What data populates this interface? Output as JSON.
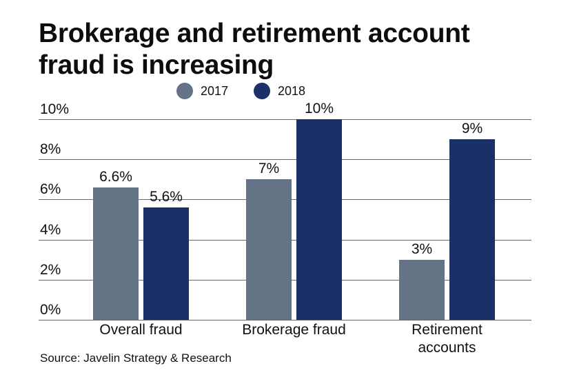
{
  "title": "Brokerage and retirement account fraud is increasing",
  "legend": [
    {
      "label": "2017",
      "color": "#647386"
    },
    {
      "label": "2018",
      "color": "#1b3066"
    }
  ],
  "yticks": [
    "0%",
    "2%",
    "4%",
    "6%",
    "8%",
    "10%"
  ],
  "categories": [
    "Overall fraud",
    "Brokerage fraud",
    "Retirement accounts"
  ],
  "bar_labels": {
    "2017": [
      "6.6%",
      "7%",
      "3%"
    ],
    "2018": [
      "5.6%",
      "10%",
      "9%"
    ]
  },
  "source": "Source: Javelin Strategy & Research",
  "chart_data": {
    "type": "bar",
    "title": "Brokerage and retirement account fraud is increasing",
    "categories": [
      "Overall fraud",
      "Brokerage fraud",
      "Retirement accounts"
    ],
    "series": [
      {
        "name": "2017",
        "color": "#647386",
        "values": [
          6.6,
          7,
          3
        ]
      },
      {
        "name": "2018",
        "color": "#1b3066",
        "values": [
          5.6,
          10,
          9
        ]
      }
    ],
    "xlabel": "",
    "ylabel": "",
    "ylim": [
      0,
      10
    ],
    "yticks": [
      0,
      2,
      4,
      6,
      8,
      10
    ],
    "ytick_format": "%",
    "grid": true,
    "legend_position": "top",
    "source": "Source: Javelin Strategy & Research"
  }
}
